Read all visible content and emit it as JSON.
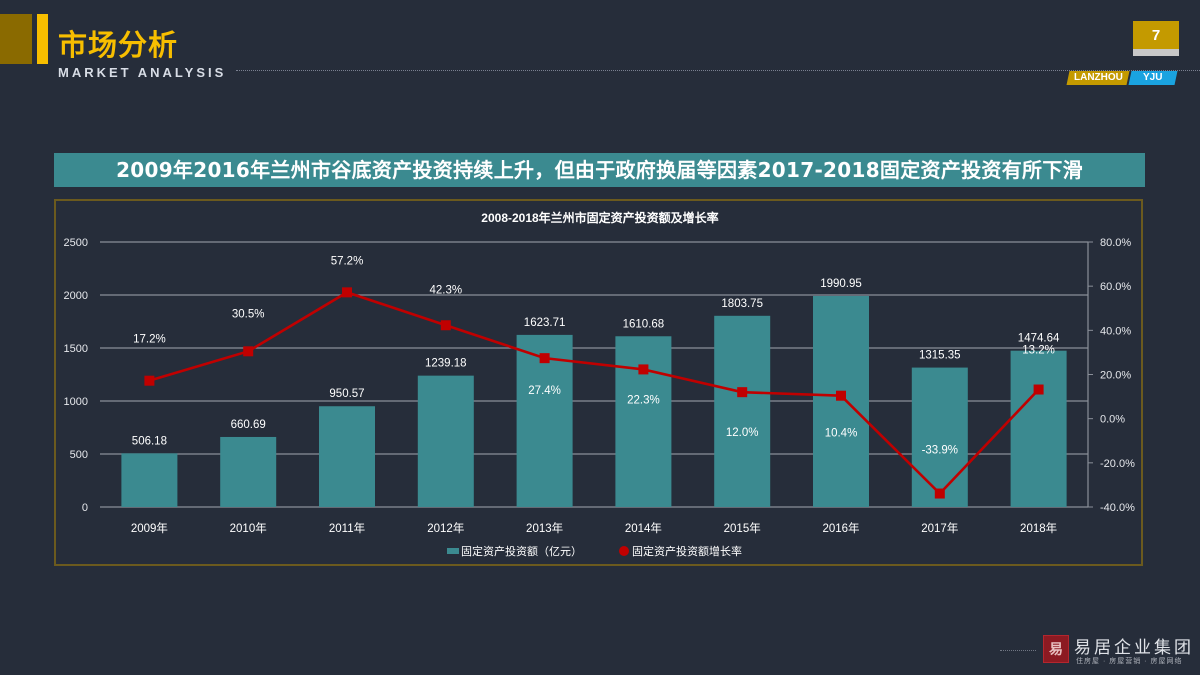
{
  "header": {
    "title_cn": "市场分析",
    "title_en": "MARKET ANALYSIS",
    "page_number": "7",
    "brand_left": "LANZHOU",
    "brand_right": "YJU"
  },
  "headline": "2009年2016年兰州市谷底资产投资持续上升，但由于政府换届等因素2017-2018固定资产投资有所下滑",
  "footer": {
    "logo_glyph": "易",
    "company": "易居企业集团",
    "tagline": "住房屋 · 房屋营销 · 房屋网络"
  },
  "colors": {
    "background": "#262d3a",
    "accent_gold": "#f7be00",
    "bar_teal": "#3b8a90",
    "line_red": "#c00000",
    "gridline": "#8a8f99",
    "text": "#ffffff"
  },
  "chart_data": {
    "type": "bar",
    "title": "2008-2018年兰州市固定资产投资额及增长率",
    "categories": [
      "2009年",
      "2010年",
      "2011年",
      "2012年",
      "2013年",
      "2014年",
      "2015年",
      "2016年",
      "2017年",
      "2018年"
    ],
    "series": [
      {
        "name": "固定资产投资额（亿元）",
        "type": "bar",
        "axis": "left",
        "color": "#3b8a90",
        "values": [
          506.18,
          660.69,
          950.57,
          1239.18,
          1623.71,
          1610.68,
          1803.75,
          1990.95,
          1315.35,
          1474.64
        ],
        "labels": [
          "506.18",
          "660.69",
          "950.57",
          "1239.18",
          "1623.71",
          "1610.68",
          "1803.75",
          "1990.95",
          "1315.35",
          "1474.64"
        ]
      },
      {
        "name": "固定资产投资额增长率",
        "type": "line",
        "axis": "right",
        "color": "#c00000",
        "values": [
          17.2,
          30.5,
          57.2,
          42.3,
          27.4,
          22.3,
          12.0,
          10.4,
          -33.9,
          13.2
        ],
        "labels": [
          "17.2%",
          "30.5%",
          "57.2%",
          "42.3%",
          "27.4%",
          "22.3%",
          "12.0%",
          "10.4%",
          "-33.9%",
          "13.2%"
        ]
      }
    ],
    "xlabel": "",
    "ylabel": "",
    "ylim": [
      0,
      2500
    ],
    "yticks": [
      "0",
      "500",
      "1000",
      "1500",
      "2000",
      "2500"
    ],
    "y2lim": [
      -40,
      80
    ],
    "y2ticks": [
      "-40.0%",
      "-20.0%",
      "0.0%",
      "20.0%",
      "40.0%",
      "60.0%",
      "80.0%"
    ],
    "grid": true,
    "legend_position": "bottom"
  }
}
